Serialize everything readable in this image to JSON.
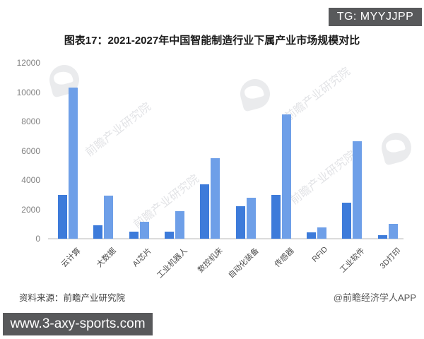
{
  "badge": {
    "label": "TG: MYYJJPP"
  },
  "chart_data": {
    "type": "bar",
    "title": "图表17：2021-2027年中国智能制造行业下属产业市场规模对比",
    "categories": [
      "云计算",
      "大数据",
      "AI芯片",
      "工业机器人",
      "数控机床",
      "自动化装备",
      "传感器",
      "RFID",
      "工业软件",
      "3D打印"
    ],
    "series": [
      {
        "name": "dark-blue-series",
        "color": "#3D7BDA",
        "values": [
          3000,
          900,
          480,
          480,
          3700,
          2200,
          3000,
          420,
          2450,
          260
        ]
      },
      {
        "name": "light-blue-series",
        "color": "#6E9FE8",
        "values": [
          10300,
          2950,
          1150,
          1900,
          5500,
          2800,
          8500,
          750,
          6650,
          1000
        ]
      }
    ],
    "xlabel": "",
    "ylabel": "",
    "ylim": [
      0,
      12000
    ],
    "yticks": [
      0,
      2000,
      4000,
      6000,
      8000,
      10000,
      12000
    ],
    "grid": false,
    "legend_position": "none"
  },
  "watermark": {
    "text": "前瞻产业研究院"
  },
  "footer": {
    "source": "资料来源：前瞻产业研究院",
    "credit": "@前瞻经济学人APP"
  },
  "website_bar": {
    "url": "www.3-axy-sports.com"
  },
  "colors": {
    "badge_bg": "#58595B",
    "website_bar_bg": "#58595B",
    "bar_dark": "#3D7BDA",
    "bar_light": "#6E9FE8",
    "axis_line": "#DCDCDC",
    "tick_text": "#808080",
    "xlabel_text": "#4D4D4D"
  }
}
